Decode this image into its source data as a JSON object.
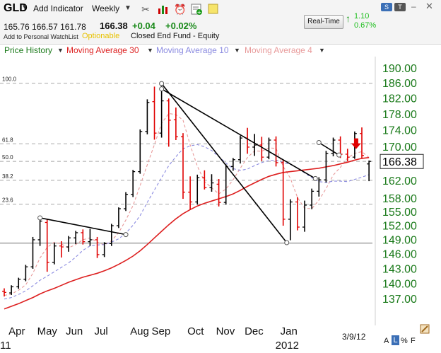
{
  "header": {
    "ticker": "GLD",
    "add_indicator": "Add Indicator",
    "frequency": "Weekly",
    "open": "165.76",
    "high": "166.57",
    "low": "161.78",
    "close": "166.38",
    "change_net": "+0.04",
    "change_pct": "+0.02%",
    "watchlist_link": "Add to Personal WatchList",
    "optionable": "Optionable",
    "fund_type": "Closed End Fund - Equity",
    "realtime_button": "Real-Time",
    "realtime_change_net": "1.10",
    "realtime_change_pct": "0.67%",
    "badge_s": "S",
    "badge_t": "T",
    "min_symbol": "–",
    "close_symbol": "✕"
  },
  "legend": {
    "price_history": "Price History",
    "ma30": "Moving Average 30",
    "ma10": "Moving Average 10",
    "ma4": "Moving Average 4"
  },
  "footer": {
    "date": "3/9/12",
    "scale_a": "A",
    "scale_l": "L",
    "scale_pct": "%",
    "scale_f": "F"
  },
  "colors": {
    "up": "#000000",
    "down": "#e00000",
    "ma30": "#dd1f1f",
    "ma10": "#8a8ae0",
    "ma4": "#e89a9a",
    "price_axis": "#1a7a1a"
  },
  "chart_data": {
    "type": "bar",
    "subtype": "ohlc",
    "y_scale": "log",
    "ylim": [
      135.5,
      191.5
    ],
    "y_ticks": [
      190,
      186,
      182,
      178,
      174,
      170,
      166,
      162,
      158,
      155,
      152,
      149,
      146,
      143,
      140,
      137
    ],
    "y_tick_labels": [
      "190.00",
      "186.00",
      "182.00",
      "178.00",
      "174.00",
      "170.00",
      "",
      "162.00",
      "158.00",
      "155.00",
      "152.00",
      "149.00",
      "146.00",
      "143.00",
      "140.00",
      "137.00"
    ],
    "last_price_label": "166.38",
    "last_price": 166.38,
    "x_labels": [
      {
        "label": "Apr",
        "week": 1
      },
      {
        "label": "May",
        "week": 5
      },
      {
        "label": "Jun",
        "week": 9
      },
      {
        "label": "Jul",
        "week": 13
      },
      {
        "label": "Aug",
        "week": 18
      },
      {
        "label": "Sep",
        "week": 21
      },
      {
        "label": "Oct",
        "week": 26
      },
      {
        "label": "Nov",
        "week": 30
      },
      {
        "label": "Dec",
        "week": 34
      },
      {
        "label": "Jan",
        "week": 39
      }
    ],
    "year_labels": [
      {
        "label": "11",
        "week": 0
      },
      {
        "label": "2012",
        "week": 38.5
      }
    ],
    "fib_levels": [
      {
        "label": "100.0",
        "price": 185.9
      },
      {
        "label": "61.8",
        "price": 170.6
      },
      {
        "label": "50.0",
        "price": 166.4
      },
      {
        "label": "38.2",
        "price": 162.0
      },
      {
        "label": "23.6",
        "price": 156.6
      }
    ],
    "weeks": [
      {
        "o": 138.4,
        "h": 139.0,
        "l": 137.4,
        "c": 138.2
      },
      {
        "o": 138.1,
        "h": 139.6,
        "l": 137.7,
        "c": 139.3
      },
      {
        "o": 139.3,
        "h": 141.1,
        "l": 138.9,
        "c": 140.8
      },
      {
        "o": 140.8,
        "h": 143.7,
        "l": 140.4,
        "c": 143.3
      },
      {
        "o": 143.3,
        "h": 149.5,
        "l": 142.9,
        "c": 148.9
      },
      {
        "o": 148.9,
        "h": 153.9,
        "l": 147.6,
        "c": 152.9
      },
      {
        "o": 152.6,
        "h": 153.2,
        "l": 142.3,
        "c": 144.2
      },
      {
        "o": 144.2,
        "h": 148.3,
        "l": 143.8,
        "c": 147.6
      },
      {
        "o": 147.6,
        "h": 148.6,
        "l": 145.2,
        "c": 147.4
      },
      {
        "o": 147.4,
        "h": 149.7,
        "l": 146.4,
        "c": 149.3
      },
      {
        "o": 149.3,
        "h": 150.8,
        "l": 148.0,
        "c": 150.4
      },
      {
        "o": 150.4,
        "h": 151.1,
        "l": 147.9,
        "c": 148.5
      },
      {
        "o": 148.5,
        "h": 151.2,
        "l": 147.6,
        "c": 148.9
      },
      {
        "o": 148.9,
        "h": 149.5,
        "l": 145.1,
        "c": 145.8
      },
      {
        "o": 145.8,
        "h": 148.4,
        "l": 145.3,
        "c": 148.1
      },
      {
        "o": 148.1,
        "h": 152.3,
        "l": 147.6,
        "c": 151.9
      },
      {
        "o": 151.9,
        "h": 155.9,
        "l": 151.4,
        "c": 155.6
      },
      {
        "o": 155.6,
        "h": 159.3,
        "l": 155.1,
        "c": 158.8
      },
      {
        "o": 158.8,
        "h": 164.4,
        "l": 158.2,
        "c": 164.0
      },
      {
        "o": 164.0,
        "h": 174.1,
        "l": 163.5,
        "c": 173.6
      },
      {
        "o": 173.6,
        "h": 181.7,
        "l": 172.9,
        "c": 180.9
      },
      {
        "o": 181.1,
        "h": 185.0,
        "l": 171.6,
        "c": 173.2
      },
      {
        "o": 173.2,
        "h": 185.9,
        "l": 172.1,
        "c": 181.3
      },
      {
        "o": 181.3,
        "h": 181.9,
        "l": 169.9,
        "c": 176.4
      },
      {
        "o": 176.5,
        "h": 179.6,
        "l": 171.5,
        "c": 172.3
      },
      {
        "o": 172.3,
        "h": 173.2,
        "l": 157.8,
        "c": 159.3
      },
      {
        "o": 159.3,
        "h": 162.9,
        "l": 155.4,
        "c": 157.1
      },
      {
        "o": 157.1,
        "h": 163.3,
        "l": 156.5,
        "c": 162.6
      },
      {
        "o": 162.6,
        "h": 164.3,
        "l": 159.9,
        "c": 160.3
      },
      {
        "o": 160.3,
        "h": 163.4,
        "l": 159.4,
        "c": 161.4
      },
      {
        "o": 161.1,
        "h": 162.3,
        "l": 156.1,
        "c": 157.0
      },
      {
        "o": 157.0,
        "h": 165.7,
        "l": 156.5,
        "c": 165.2
      },
      {
        "o": 165.2,
        "h": 167.2,
        "l": 164.2,
        "c": 166.8
      },
      {
        "o": 166.8,
        "h": 172.6,
        "l": 165.9,
        "c": 172.0
      },
      {
        "o": 172.0,
        "h": 174.5,
        "l": 168.2,
        "c": 169.8
      },
      {
        "o": 169.8,
        "h": 173.0,
        "l": 167.7,
        "c": 170.3
      },
      {
        "o": 170.3,
        "h": 172.3,
        "l": 166.5,
        "c": 167.4
      },
      {
        "o": 167.4,
        "h": 172.1,
        "l": 166.9,
        "c": 171.5
      },
      {
        "o": 171.5,
        "h": 172.4,
        "l": 165.2,
        "c": 166.1
      },
      {
        "o": 166.1,
        "h": 166.8,
        "l": 151.9,
        "c": 153.3
      },
      {
        "o": 153.3,
        "h": 157.7,
        "l": 148.8,
        "c": 157.1
      },
      {
        "o": 157.1,
        "h": 158.2,
        "l": 150.9,
        "c": 151.6
      },
      {
        "o": 151.6,
        "h": 157.4,
        "l": 150.6,
        "c": 156.4
      },
      {
        "o": 156.4,
        "h": 160.1,
        "l": 155.5,
        "c": 159.5
      },
      {
        "o": 159.5,
        "h": 162.7,
        "l": 158.3,
        "c": 162.1
      },
      {
        "o": 162.1,
        "h": 168.9,
        "l": 161.5,
        "c": 168.3
      },
      {
        "o": 168.3,
        "h": 172.1,
        "l": 167.6,
        "c": 171.5
      },
      {
        "o": 171.5,
        "h": 172.4,
        "l": 167.2,
        "c": 168.1
      },
      {
        "o": 168.1,
        "h": 169.4,
        "l": 166.4,
        "c": 167.4
      },
      {
        "o": 167.4,
        "h": 173.6,
        "l": 167.0,
        "c": 173.1
      },
      {
        "o": 173.1,
        "h": 174.6,
        "l": 167.1,
        "c": 167.8
      },
      {
        "o": 165.8,
        "h": 166.6,
        "l": 161.8,
        "c": 166.4
      }
    ],
    "series": [
      {
        "name": "Moving Average 30",
        "values": [
          135.0,
          135.5,
          136.0,
          136.6,
          137.2,
          137.9,
          138.5,
          139.0,
          139.6,
          140.2,
          140.7,
          141.2,
          141.6,
          142.0,
          142.5,
          143.1,
          143.8,
          144.6,
          145.5,
          146.6,
          147.9,
          149.3,
          150.7,
          152.1,
          153.4,
          154.5,
          155.4,
          156.2,
          156.8,
          157.3,
          157.8,
          158.3,
          158.9,
          159.7,
          160.6,
          161.4,
          162.2,
          162.9,
          163.4,
          163.8,
          164.0,
          164.2,
          164.4,
          164.6,
          164.8,
          165.1,
          165.4,
          165.8,
          166.2,
          166.7,
          167.1,
          167.3
        ]
      },
      {
        "name": "Moving Average 10",
        "values": [
          136.9,
          137.2,
          137.8,
          138.5,
          139.5,
          140.6,
          141.4,
          142.3,
          143.2,
          144.1,
          145.3,
          146.7,
          147.6,
          147.8,
          147.9,
          148.4,
          149.1,
          150.3,
          152.0,
          154.1,
          157.0,
          159.8,
          162.6,
          165.4,
          167.5,
          169.4,
          170.1,
          170.4,
          169.9,
          169.0,
          167.5,
          166.0,
          164.7,
          164.3,
          164.6,
          165.4,
          166.1,
          166.6,
          166.7,
          166.1,
          165.7,
          164.9,
          163.7,
          162.6,
          161.7,
          161.5,
          161.8,
          161.8,
          161.7,
          162.2,
          162.7,
          163.3
        ]
      },
      {
        "name": "Moving Average 4",
        "values": [
          137.6,
          137.9,
          138.6,
          139.7,
          142.0,
          145.1,
          147.3,
          148.4,
          148.0,
          147.2,
          147.9,
          148.9,
          149.3,
          148.4,
          147.8,
          148.7,
          150.4,
          153.1,
          156.3,
          160.8,
          165.6,
          170.4,
          175.6,
          178.1,
          177.8,
          176.4,
          170.3,
          165.3,
          161.7,
          160.3,
          158.9,
          160.0,
          162.1,
          164.8,
          167.3,
          168.9,
          168.8,
          169.6,
          169.5,
          165.2,
          162.5,
          158.1,
          155.7,
          155.6,
          157.5,
          160.1,
          163.2,
          165.0,
          167.2,
          168.3,
          168.7,
          167.3
        ]
      }
    ],
    "trendlines": [
      {
        "from": {
          "week": 5,
          "price": 153.6
        },
        "to": {
          "week": 17,
          "price": 150.0
        }
      },
      {
        "from": {
          "week": 22,
          "price": 185.8
        },
        "to": {
          "week": 39.5,
          "price": 148.3
        }
      },
      {
        "from": {
          "week": 22,
          "price": 184.4
        },
        "to": {
          "week": 43.5,
          "price": 162.4
        }
      },
      {
        "from": {
          "week": 44,
          "price": 170.9
        },
        "to": {
          "week": 46.8,
          "price": 167.9
        }
      }
    ],
    "pivots": [
      {
        "week": 5,
        "price": 153.6
      },
      {
        "week": 17,
        "price": 150.0
      },
      {
        "week": 22,
        "price": 185.8
      },
      {
        "week": 22,
        "price": 184.4
      },
      {
        "week": 39.5,
        "price": 148.3
      },
      {
        "week": 43.5,
        "price": 162.4
      },
      {
        "week": 44,
        "price": 170.9
      },
      {
        "week": 46.8,
        "price": 167.9
      }
    ],
    "horizontal_line": 148.2,
    "alert_arrow": {
      "week": 49.2,
      "price": 170.2
    },
    "grid": false,
    "legend_position": "top"
  }
}
